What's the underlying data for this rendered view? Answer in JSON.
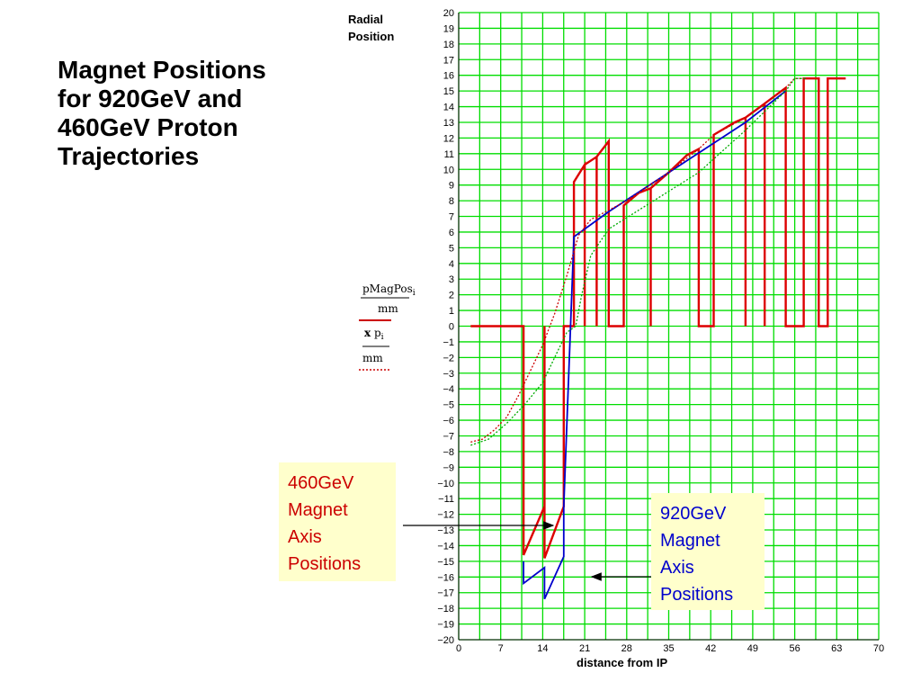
{
  "slide": {
    "title_lines": [
      "Magnet Positions",
      "for 920GeV and",
      "460GeV Proton",
      "Trajectories"
    ]
  },
  "notes": {
    "n460": [
      "460GeV",
      "Magnet",
      "Axis",
      "Positions"
    ],
    "n920": [
      "920GeV",
      "Magnet",
      "Axis",
      "Positions"
    ]
  },
  "chart_data": {
    "type": "line",
    "ylabel_lines": [
      "Radial",
      "Position"
    ],
    "xlabel": "distance from IP",
    "xlim": [
      0,
      70
    ],
    "ylim": [
      -20,
      20
    ],
    "x_ticks": [
      0,
      7,
      14,
      21,
      28,
      35,
      42,
      49,
      56,
      63,
      70
    ],
    "y_ticks": [
      -20,
      -19,
      -18,
      -17,
      -16,
      -15,
      -14,
      -13,
      -12,
      -11,
      -10,
      -9,
      -8,
      -7,
      -6,
      -5,
      -4,
      -3,
      -2,
      -1,
      0,
      1,
      2,
      3,
      4,
      5,
      6,
      7,
      8,
      9,
      10,
      11,
      12,
      13,
      14,
      15,
      16,
      17,
      18,
      19,
      20
    ],
    "grid": true,
    "legend": {
      "position": "left",
      "entries": [
        {
          "label": "pMagPos_i / mm",
          "style": "solid",
          "color": "#cc0000"
        },
        {
          "label": "x p_i / mm",
          "style": "dotted",
          "color": "#cc0000"
        }
      ]
    },
    "colors": {
      "grid": "#00dd00",
      "red": "#dd0000",
      "blue": "#0000cc",
      "green": "#00aa00"
    },
    "series": [
      {
        "name": "460GeV magnet axis positions",
        "color": "#dd0000",
        "style": "solid",
        "points": [
          [
            2,
            0
          ],
          [
            10.8,
            0
          ],
          [
            10.8,
            -14.6
          ],
          [
            14.3,
            -11.5
          ],
          [
            14.3,
            0
          ],
          [
            14.3,
            -14.8
          ],
          [
            17.5,
            -11.5
          ],
          [
            17.5,
            0
          ],
          [
            19.2,
            0
          ],
          [
            19.2,
            9.2
          ],
          [
            21,
            10.3
          ],
          [
            21,
            0
          ],
          [
            21,
            10.3
          ],
          [
            23,
            10.8
          ],
          [
            23,
            0
          ],
          [
            23,
            10.8
          ],
          [
            25,
            11.8
          ],
          [
            25,
            0
          ],
          [
            27.5,
            0
          ],
          [
            27.5,
            7.7
          ],
          [
            30,
            8.5
          ],
          [
            32,
            8.8
          ],
          [
            32,
            0
          ],
          [
            32,
            8.8
          ],
          [
            35,
            9.8
          ],
          [
            38,
            10.9
          ],
          [
            40,
            11.3
          ],
          [
            40,
            0
          ],
          [
            42.5,
            0
          ],
          [
            42.5,
            12.2
          ],
          [
            46,
            13
          ],
          [
            47.8,
            13.3
          ],
          [
            47.8,
            0
          ],
          [
            47.8,
            13.3
          ],
          [
            51,
            14.2
          ],
          [
            51,
            0
          ],
          [
            51,
            14.2
          ],
          [
            54.5,
            15.2
          ],
          [
            54.5,
            0
          ],
          [
            57.5,
            0
          ],
          [
            57.5,
            15.8
          ],
          [
            60,
            15.8
          ],
          [
            60,
            0
          ],
          [
            61.5,
            0
          ],
          [
            61.5,
            15.8
          ],
          [
            64.5,
            15.8
          ]
        ]
      },
      {
        "name": "920GeV magnet axis positions",
        "color": "#0000cc",
        "style": "solid",
        "points": [
          [
            10.8,
            -15
          ],
          [
            10.8,
            -16.4
          ],
          [
            14.3,
            -15.4
          ],
          [
            14.3,
            -17.4
          ],
          [
            17.5,
            -14.7
          ],
          [
            17.5,
            -11.5
          ],
          [
            19.2,
            5.7
          ],
          [
            25,
            7.3
          ],
          [
            47.8,
            13
          ],
          [
            54.5,
            15
          ]
        ]
      },
      {
        "name": "460GeV trajectory",
        "color": "#cc0000",
        "style": "dotted",
        "points": [
          [
            2,
            -7.4
          ],
          [
            4,
            -7.2
          ],
          [
            6,
            -6.6
          ],
          [
            8,
            -5.8
          ],
          [
            10,
            -4.4
          ],
          [
            12,
            -2.8
          ],
          [
            14,
            -1.2
          ],
          [
            16,
            0.8
          ],
          [
            18,
            3.2
          ],
          [
            20,
            5.8
          ],
          [
            22,
            6.8
          ],
          [
            25,
            7.4
          ],
          [
            28,
            8
          ],
          [
            35,
            9.8
          ],
          [
            40,
            11.3
          ],
          [
            42.5,
            12.2
          ],
          [
            47.8,
            13.3
          ],
          [
            54.5,
            15.2
          ],
          [
            56,
            15.8
          ],
          [
            58,
            15.8
          ]
        ]
      },
      {
        "name": "920GeV trajectory",
        "color": "#00aa00",
        "style": "dotted",
        "points": [
          [
            2,
            -7.6
          ],
          [
            5,
            -7.2
          ],
          [
            8,
            -6.2
          ],
          [
            11,
            -5
          ],
          [
            14,
            -3.6
          ],
          [
            16,
            -2
          ],
          [
            18,
            -0.4
          ],
          [
            19.5,
            0
          ],
          [
            20.5,
            2
          ],
          [
            22,
            4.5
          ],
          [
            25,
            6.2
          ],
          [
            30,
            7.4
          ],
          [
            40,
            9.8
          ],
          [
            47.8,
            12.5
          ],
          [
            54.5,
            15
          ],
          [
            56,
            15.8
          ],
          [
            58,
            15.8
          ]
        ]
      }
    ]
  }
}
